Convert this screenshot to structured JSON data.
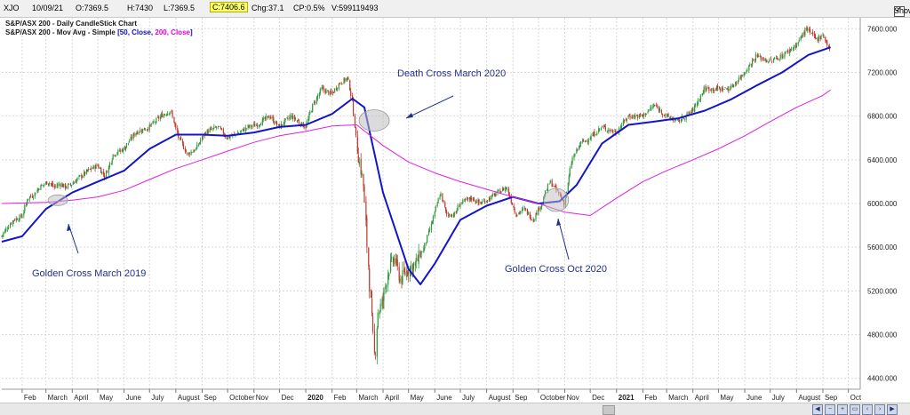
{
  "header": {
    "symbol": "XJO",
    "date": "10/09/21",
    "open": "O:7369.5",
    "high": "H:7430",
    "low": "L:7369.5",
    "close": "C:7406.6",
    "change": "Chg:37.1",
    "change_pct": "CP:0.5%",
    "volume": "V:599119493",
    "show_last": "Show Last"
  },
  "legend": {
    "line1": "S&P/ASX 200 - Daily CandleStick Chart",
    "line2_prefix": "S&P/ASX 200 - Mov Avg - Simple",
    "line2_open": "[",
    "p50": "50, Close,",
    "p200": "200, Close",
    "line2_close": "]"
  },
  "colors": {
    "up_candle": "#2e9a3e",
    "down_candle": "#c0392b",
    "ma50": "#1414c8",
    "ma200": "#e020e0",
    "annotation_text": "#1f2f8f",
    "grid": "#d9d9d9"
  },
  "annotations": [
    {
      "text": "Death Cross March 2020",
      "date": "2020-03-09",
      "value": 6720
    },
    {
      "text": "Golden Cross March 2019",
      "date": "2019-03-15",
      "value": 6030
    },
    {
      "text": "Golden Cross Oct 2020",
      "date": "2020-10-26",
      "value": 6000
    }
  ],
  "chart_data": {
    "type": "candlestick",
    "title": "S&P/ASX 200 - Daily CandleStick Chart",
    "ylim": [
      4300,
      7700
    ],
    "y_ticks": [
      4400,
      4800,
      5200,
      5600,
      6000,
      6400,
      6800,
      7200,
      7600
    ],
    "y_tick_labels": [
      "4400.000",
      "4800.000",
      "5200.000",
      "5600.000",
      "6000.000",
      "6400.000",
      "6800.000",
      "7200.000",
      "7600.000"
    ],
    "x_range": [
      "2019-01-08",
      "2021-10-15"
    ],
    "x_ticks": [
      {
        "date": "2019-02-01",
        "label": "Feb"
      },
      {
        "date": "2019-03-01",
        "label": "March"
      },
      {
        "date": "2019-04-01",
        "label": "April"
      },
      {
        "date": "2019-05-01",
        "label": "May"
      },
      {
        "date": "2019-06-01",
        "label": "June"
      },
      {
        "date": "2019-07-01",
        "label": "July"
      },
      {
        "date": "2019-08-01",
        "label": "August"
      },
      {
        "date": "2019-09-01",
        "label": "Sep"
      },
      {
        "date": "2019-10-01",
        "label": "October"
      },
      {
        "date": "2019-11-01",
        "label": "Nov"
      },
      {
        "date": "2019-12-01",
        "label": "Dec"
      },
      {
        "date": "2020-01-01",
        "label": "2020",
        "bold": true
      },
      {
        "date": "2020-02-01",
        "label": "Feb"
      },
      {
        "date": "2020-03-01",
        "label": "March"
      },
      {
        "date": "2020-04-01",
        "label": "April"
      },
      {
        "date": "2020-05-01",
        "label": "May"
      },
      {
        "date": "2020-06-01",
        "label": "June"
      },
      {
        "date": "2020-07-01",
        "label": "July"
      },
      {
        "date": "2020-08-01",
        "label": "August"
      },
      {
        "date": "2020-09-01",
        "label": "Sep"
      },
      {
        "date": "2020-10-01",
        "label": "October"
      },
      {
        "date": "2020-11-01",
        "label": "Nov"
      },
      {
        "date": "2020-12-01",
        "label": "Dec"
      },
      {
        "date": "2021-01-01",
        "label": "2021",
        "bold": true
      },
      {
        "date": "2021-02-01",
        "label": "Feb"
      },
      {
        "date": "2021-03-01",
        "label": "March"
      },
      {
        "date": "2021-04-01",
        "label": "April"
      },
      {
        "date": "2021-05-01",
        "label": "May"
      },
      {
        "date": "2021-06-01",
        "label": "June"
      },
      {
        "date": "2021-07-01",
        "label": "July"
      },
      {
        "date": "2021-08-01",
        "label": "August"
      },
      {
        "date": "2021-09-01",
        "label": "Sep"
      },
      {
        "date": "2021-10-01",
        "label": "Oct"
      }
    ],
    "price_close": [
      [
        "2019-01-08",
        5700
      ],
      [
        "2019-01-15",
        5780
      ],
      [
        "2019-01-22",
        5850
      ],
      [
        "2019-02-01",
        5880
      ],
      [
        "2019-02-08",
        6050
      ],
      [
        "2019-02-15",
        6080
      ],
      [
        "2019-02-22",
        6150
      ],
      [
        "2019-03-04",
        6200
      ],
      [
        "2019-03-11",
        6150
      ],
      [
        "2019-03-18",
        6180
      ],
      [
        "2019-03-25",
        6150
      ],
      [
        "2019-04-01",
        6180
      ],
      [
        "2019-04-10",
        6240
      ],
      [
        "2019-04-20",
        6300
      ],
      [
        "2019-05-01",
        6350
      ],
      [
        "2019-05-10",
        6250
      ],
      [
        "2019-05-20",
        6450
      ],
      [
        "2019-06-01",
        6500
      ],
      [
        "2019-06-15",
        6650
      ],
      [
        "2019-07-01",
        6700
      ],
      [
        "2019-07-15",
        6800
      ],
      [
        "2019-07-26",
        6850
      ],
      [
        "2019-08-05",
        6600
      ],
      [
        "2019-08-15",
        6450
      ],
      [
        "2019-08-25",
        6500
      ],
      [
        "2019-09-05",
        6650
      ],
      [
        "2019-09-20",
        6700
      ],
      [
        "2019-10-01",
        6600
      ],
      [
        "2019-10-15",
        6650
      ],
      [
        "2019-10-25",
        6700
      ],
      [
        "2019-11-05",
        6720
      ],
      [
        "2019-11-20",
        6800
      ],
      [
        "2019-12-01",
        6700
      ],
      [
        "2019-12-15",
        6800
      ],
      [
        "2020-01-01",
        6700
      ],
      [
        "2020-01-10",
        6900
      ],
      [
        "2020-01-20",
        7050
      ],
      [
        "2020-02-01",
        7000
      ],
      [
        "2020-02-10",
        7100
      ],
      [
        "2020-02-20",
        7150
      ],
      [
        "2020-02-25",
        6950
      ],
      [
        "2020-03-02",
        6500
      ],
      [
        "2020-03-09",
        6200
      ],
      [
        "2020-03-13",
        5700
      ],
      [
        "2020-03-17",
        5200
      ],
      [
        "2020-03-23",
        4546
      ],
      [
        "2020-03-26",
        5000
      ],
      [
        "2020-04-01",
        5100
      ],
      [
        "2020-04-08",
        5400
      ],
      [
        "2020-04-15",
        5500
      ],
      [
        "2020-04-22",
        5300
      ],
      [
        "2020-05-01",
        5400
      ],
      [
        "2020-05-10",
        5450
      ],
      [
        "2020-05-20",
        5600
      ],
      [
        "2020-06-01",
        5900
      ],
      [
        "2020-06-08",
        6100
      ],
      [
        "2020-06-15",
        5900
      ],
      [
        "2020-06-25",
        5900
      ],
      [
        "2020-07-01",
        6000
      ],
      [
        "2020-07-15",
        6050
      ],
      [
        "2020-07-25",
        6000
      ],
      [
        "2020-08-05",
        6050
      ],
      [
        "2020-08-15",
        6100
      ],
      [
        "2020-08-25",
        6150
      ],
      [
        "2020-09-05",
        5900
      ],
      [
        "2020-09-15",
        5950
      ],
      [
        "2020-09-25",
        5850
      ],
      [
        "2020-10-05",
        6000
      ],
      [
        "2020-10-15",
        6200
      ],
      [
        "2020-10-25",
        6100
      ],
      [
        "2020-11-01",
        6000
      ],
      [
        "2020-11-10",
        6400
      ],
      [
        "2020-11-20",
        6550
      ],
      [
        "2020-12-01",
        6600
      ],
      [
        "2020-12-15",
        6700
      ],
      [
        "2021-01-01",
        6650
      ],
      [
        "2021-01-15",
        6800
      ],
      [
        "2021-02-01",
        6800
      ],
      [
        "2021-02-15",
        6900
      ],
      [
        "2021-03-01",
        6800
      ],
      [
        "2021-03-15",
        6750
      ],
      [
        "2021-04-01",
        6850
      ],
      [
        "2021-04-15",
        7050
      ],
      [
        "2021-05-01",
        7050
      ],
      [
        "2021-05-15",
        7050
      ],
      [
        "2021-06-01",
        7200
      ],
      [
        "2021-06-15",
        7350
      ],
      [
        "2021-07-01",
        7300
      ],
      [
        "2021-07-15",
        7350
      ],
      [
        "2021-08-01",
        7450
      ],
      [
        "2021-08-13",
        7600
      ],
      [
        "2021-08-25",
        7500
      ],
      [
        "2021-09-01",
        7550
      ],
      [
        "2021-09-10",
        7406
      ]
    ],
    "series": [
      {
        "name": "50, Close",
        "values": [
          [
            "2019-01-08",
            5650
          ],
          [
            "2019-02-01",
            5700
          ],
          [
            "2019-03-01",
            5950
          ],
          [
            "2019-04-01",
            6100
          ],
          [
            "2019-05-01",
            6200
          ],
          [
            "2019-06-01",
            6300
          ],
          [
            "2019-07-01",
            6500
          ],
          [
            "2019-08-01",
            6630
          ],
          [
            "2019-09-01",
            6630
          ],
          [
            "2019-10-01",
            6620
          ],
          [
            "2019-11-01",
            6650
          ],
          [
            "2019-12-01",
            6700
          ],
          [
            "2020-01-01",
            6720
          ],
          [
            "2020-02-01",
            6820
          ],
          [
            "2020-02-25",
            6960
          ],
          [
            "2020-03-10",
            6880
          ],
          [
            "2020-04-01",
            6100
          ],
          [
            "2020-05-01",
            5400
          ],
          [
            "2020-05-15",
            5260
          ],
          [
            "2020-06-01",
            5450
          ],
          [
            "2020-07-01",
            5850
          ],
          [
            "2020-08-01",
            5980
          ],
          [
            "2020-09-01",
            6060
          ],
          [
            "2020-10-01",
            6000
          ],
          [
            "2020-10-26",
            6020
          ],
          [
            "2020-11-15",
            6170
          ],
          [
            "2020-12-15",
            6550
          ],
          [
            "2021-01-15",
            6720
          ],
          [
            "2021-02-15",
            6750
          ],
          [
            "2021-03-15",
            6780
          ],
          [
            "2021-04-15",
            6850
          ],
          [
            "2021-05-15",
            6950
          ],
          [
            "2021-06-15",
            7080
          ],
          [
            "2021-07-15",
            7200
          ],
          [
            "2021-08-15",
            7360
          ],
          [
            "2021-09-10",
            7430
          ]
        ]
      },
      {
        "name": "200, Close",
        "values": [
          [
            "2019-01-08",
            6000
          ],
          [
            "2019-03-01",
            6010
          ],
          [
            "2019-04-01",
            6030
          ],
          [
            "2019-05-01",
            6060
          ],
          [
            "2019-06-01",
            6120
          ],
          [
            "2019-07-01",
            6220
          ],
          [
            "2019-08-01",
            6320
          ],
          [
            "2019-09-01",
            6400
          ],
          [
            "2019-10-01",
            6480
          ],
          [
            "2019-11-01",
            6560
          ],
          [
            "2019-12-01",
            6620
          ],
          [
            "2020-01-01",
            6660
          ],
          [
            "2020-02-01",
            6710
          ],
          [
            "2020-03-01",
            6720
          ],
          [
            "2020-04-01",
            6530
          ],
          [
            "2020-05-01",
            6380
          ],
          [
            "2020-06-01",
            6280
          ],
          [
            "2020-07-01",
            6200
          ],
          [
            "2020-08-01",
            6130
          ],
          [
            "2020-09-01",
            6060
          ],
          [
            "2020-10-01",
            6000
          ],
          [
            "2020-11-01",
            5920
          ],
          [
            "2020-12-01",
            5890
          ],
          [
            "2021-01-01",
            6050
          ],
          [
            "2021-02-01",
            6200
          ],
          [
            "2021-03-01",
            6300
          ],
          [
            "2021-04-01",
            6400
          ],
          [
            "2021-05-01",
            6500
          ],
          [
            "2021-06-01",
            6620
          ],
          [
            "2021-07-01",
            6750
          ],
          [
            "2021-08-01",
            6880
          ],
          [
            "2021-09-01",
            6990
          ],
          [
            "2021-09-10",
            7040
          ]
        ]
      }
    ]
  }
}
